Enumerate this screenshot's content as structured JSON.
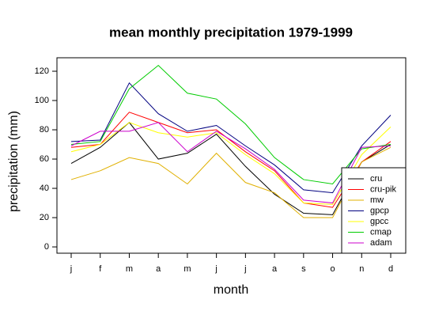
{
  "chart_data": {
    "type": "line",
    "title": "mean monthly precipitation 1979-1999",
    "xlabel": "month",
    "ylabel": "precipitation (mm)",
    "categories": [
      "j",
      "f",
      "m",
      "a",
      "m",
      "j",
      "j",
      "a",
      "s",
      "o",
      "n",
      "d"
    ],
    "ylim": [
      -4.3,
      129.2
    ],
    "yticks": [
      0,
      20,
      40,
      60,
      80,
      100,
      120
    ],
    "grid": false,
    "legend": "bottom-right",
    "series": [
      {
        "name": "cru",
        "color": "#000000",
        "values": [
          57,
          68,
          85,
          60,
          64,
          77,
          55,
          36,
          23,
          22,
          58,
          70
        ]
      },
      {
        "name": "cru-pik",
        "color": "#ff0000",
        "values": [
          68,
          70,
          92,
          85,
          78,
          80,
          65,
          52,
          30,
          27,
          58,
          72
        ]
      },
      {
        "name": "mw",
        "color": "#e0b000",
        "values": [
          46,
          52,
          61,
          57,
          43,
          64,
          44,
          37,
          20,
          20,
          58,
          68
        ]
      },
      {
        "name": "gpcp",
        "color": "#000080",
        "values": [
          72,
          73,
          112,
          91,
          79,
          83,
          69,
          56,
          39,
          37,
          69,
          90
        ]
      },
      {
        "name": "gpcc",
        "color": "#ffff00",
        "values": [
          65,
          70,
          85,
          78,
          75,
          78,
          63,
          50,
          30,
          29,
          63,
          82
        ]
      },
      {
        "name": "cmap",
        "color": "#00cc00",
        "values": [
          70,
          72,
          108,
          124,
          105,
          101,
          84,
          61,
          46,
          43,
          67,
          70
        ]
      },
      {
        "name": "adam",
        "color": "#cc00cc",
        "values": [
          69,
          79,
          79,
          85,
          65,
          79,
          67,
          53,
          32,
          30,
          68,
          69
        ]
      }
    ]
  }
}
